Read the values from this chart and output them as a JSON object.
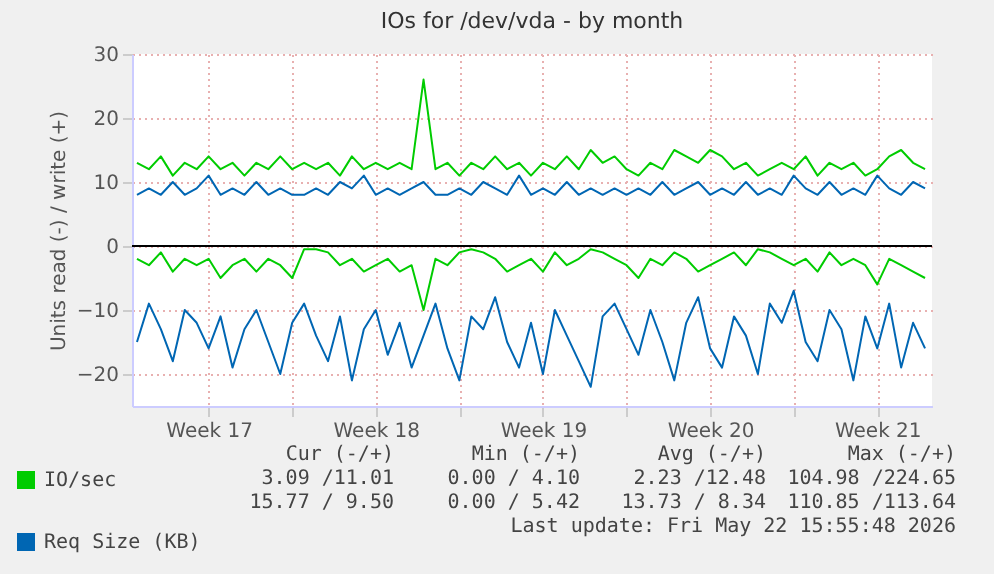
{
  "chart_data": {
    "type": "line",
    "title": "IOs for /dev/vda - by month",
    "ylabel": "Units read (-) / write (+)",
    "x": [
      "2026-04-20T12:00",
      "2026-04-21T00:00",
      "2026-04-21T12:00",
      "2026-04-22T00:00",
      "2026-04-22T12:00",
      "2026-04-23T00:00",
      "2026-04-23T12:00",
      "2026-04-24T00:00",
      "2026-04-24T12:00",
      "2026-04-25T00:00",
      "2026-04-25T12:00",
      "2026-04-26T00:00",
      "2026-04-26T12:00",
      "2026-04-27T00:00",
      "2026-04-27T12:00",
      "2026-04-28T00:00",
      "2026-04-28T12:00",
      "2026-04-29T00:00",
      "2026-04-29T12:00",
      "2026-04-30T00:00",
      "2026-04-30T12:00",
      "2026-05-01T00:00",
      "2026-05-01T12:00",
      "2026-05-02T00:00",
      "2026-05-02T12:00",
      "2026-05-03T00:00",
      "2026-05-03T12:00",
      "2026-05-04T00:00",
      "2026-05-04T12:00",
      "2026-05-05T00:00",
      "2026-05-05T12:00",
      "2026-05-06T00:00",
      "2026-05-06T12:00",
      "2026-05-07T00:00",
      "2026-05-07T12:00",
      "2026-05-08T00:00",
      "2026-05-08T12:00",
      "2026-05-09T00:00",
      "2026-05-09T12:00",
      "2026-05-10T00:00",
      "2026-05-10T12:00",
      "2026-05-11T00:00",
      "2026-05-11T12:00",
      "2026-05-12T00:00",
      "2026-05-12T12:00",
      "2026-05-13T00:00",
      "2026-05-13T12:00",
      "2026-05-14T00:00",
      "2026-05-14T12:00",
      "2026-05-15T00:00",
      "2026-05-15T12:00",
      "2026-05-16T00:00",
      "2026-05-16T12:00",
      "2026-05-17T00:00",
      "2026-05-17T12:00",
      "2026-05-18T00:00",
      "2026-05-18T12:00",
      "2026-05-19T00:00",
      "2026-05-19T12:00",
      "2026-05-20T00:00",
      "2026-05-20T12:00",
      "2026-05-21T00:00",
      "2026-05-21T12:00",
      "2026-05-22T00:00",
      "2026-05-22T12:00",
      "2026-05-23T00:00",
      "2026-05-23T12:00"
    ],
    "xlim": [
      "2026-04-20T07:00",
      "2026-05-23T19:00"
    ],
    "xticks": [
      {
        "value": "2026-04-23T12:00",
        "label": "Week 17"
      },
      {
        "value": "2026-04-27",
        "label": null
      },
      {
        "value": "2026-04-30T12:00",
        "label": "Week 18"
      },
      {
        "value": "2026-05-04",
        "label": null
      },
      {
        "value": "2026-05-07T12:00",
        "label": "Week 19"
      },
      {
        "value": "2026-05-11",
        "label": null
      },
      {
        "value": "2026-05-14T12:00",
        "label": "Week 20"
      },
      {
        "value": "2026-05-18",
        "label": null
      },
      {
        "value": "2026-05-21T12:00",
        "label": "Week 21"
      }
    ],
    "ylim": [
      -25,
      30
    ],
    "yticks": [
      -20,
      -10,
      0,
      10,
      20,
      30
    ],
    "grid": true,
    "legend": "bottom left",
    "ref_lines": [
      {
        "axis": "y",
        "value": 0,
        "color": "#000000"
      }
    ],
    "series": [
      {
        "name": "IO/sec",
        "color": "#00cc00",
        "values": [
          13,
          12,
          14,
          11,
          13,
          12,
          14,
          12,
          13,
          11,
          13,
          12,
          14,
          12,
          13,
          12,
          13,
          11,
          14,
          12,
          13,
          12,
          13,
          12,
          26,
          12,
          13,
          11,
          13,
          12,
          14,
          12,
          13,
          11,
          13,
          12,
          14,
          12,
          15,
          13,
          14,
          12,
          11,
          13,
          12,
          15,
          14,
          13,
          15,
          14,
          12,
          13,
          11,
          12,
          13,
          12,
          14,
          11,
          13,
          12,
          13,
          11,
          12,
          14,
          15,
          13,
          12
        ]
      },
      {
        "color": "#00cc00",
        "values": [
          -2,
          -3,
          -1,
          -4,
          -2,
          -3,
          -2,
          -5,
          -3,
          -2,
          -4,
          -2,
          -3,
          -5,
          -0.5,
          -0.5,
          -1,
          -3,
          -2,
          -4,
          -3,
          -2,
          -4,
          -3,
          -10,
          -2,
          -3,
          -1,
          -0.5,
          -1,
          -2,
          -4,
          -3,
          -2,
          -4,
          -1,
          -3,
          -2,
          -0.5,
          -1,
          -2,
          -3,
          -5,
          -2,
          -3,
          -1,
          -2,
          -4,
          -3,
          -2,
          -1,
          -3,
          -0.5,
          -1,
          -2,
          -3,
          -2,
          -4,
          -1,
          -3,
          -2,
          -3,
          -6,
          -2,
          -3,
          -4,
          -5
        ]
      },
      {
        "name": "Req Size (KB)",
        "color": "#0066b3",
        "values": [
          8,
          9,
          8,
          10,
          8,
          9,
          11,
          8,
          9,
          8,
          10,
          8,
          9,
          8,
          8,
          9,
          8,
          10,
          9,
          11,
          8,
          9,
          8,
          9,
          10,
          8,
          8,
          9,
          8,
          10,
          9,
          8,
          11,
          8,
          9,
          8,
          10,
          8,
          9,
          8,
          9,
          8,
          9,
          8,
          10,
          8,
          9,
          10,
          8,
          9,
          8,
          10,
          8,
          9,
          8,
          11,
          9,
          8,
          10,
          8,
          9,
          8,
          11,
          9,
          8,
          10,
          9
        ]
      },
      {
        "color": "#0066b3",
        "values": [
          -15,
          -9,
          -13,
          -18,
          -10,
          -12,
          -16,
          -11,
          -19,
          -13,
          -10,
          -15,
          -20,
          -12,
          -9,
          -14,
          -18,
          -11,
          -21,
          -13,
          -10,
          -17,
          -12,
          -19,
          -14,
          -9,
          -16,
          -21,
          -11,
          -13,
          -8,
          -15,
          -19,
          -12,
          -20,
          -10,
          -14,
          -18,
          -22,
          -11,
          -9,
          -13,
          -17,
          -10,
          -15,
          -21,
          -12,
          -8,
          -16,
          -19,
          -11,
          -14,
          -20,
          -9,
          -12,
          -7,
          -15,
          -18,
          -10,
          -13,
          -21,
          -11,
          -16,
          -9,
          -19,
          -12,
          -16
        ]
      }
    ],
    "annotations": [
      "Cur (-/+)",
      "Min (-/+)",
      "Avg (-/+)",
      "Max (-/+)",
      "3.09 /11.01",
      "0.00 / 4.10",
      "2.23 /12.48",
      "104.98 /224.65",
      "15.77 / 9.50",
      "0.00 / 5.42",
      "13.73 / 8.34",
      "110.85 /113.64",
      "Last update: Fri May 22 15:55:48 2026"
    ]
  }
}
